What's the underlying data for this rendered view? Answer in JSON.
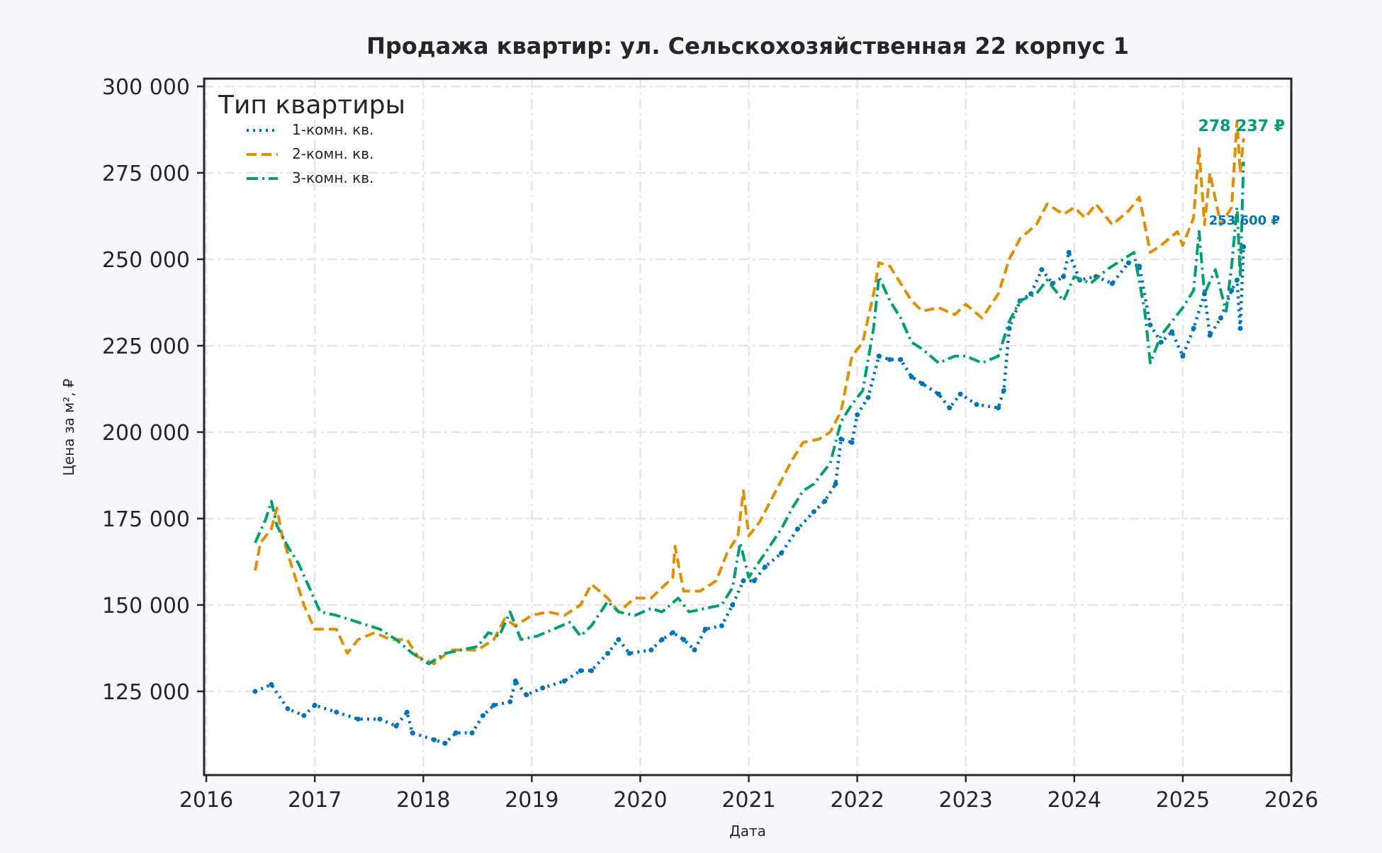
{
  "chart_data": {
    "type": "line",
    "title": "Продажа квартир: ул. Сельскохозяйственная 22 корпус 1",
    "xlabel": "Дата",
    "ylabel": "Цена за м², ₽",
    "xlim": [
      2015.98,
      2026.0
    ],
    "ylim": [
      100800,
      302250
    ],
    "x_ticks": [
      2016,
      2017,
      2018,
      2019,
      2020,
      2021,
      2022,
      2023,
      2024,
      2025,
      2026
    ],
    "x_tick_labels": [
      "2016",
      "2017",
      "2018",
      "2019",
      "2020",
      "2021",
      "2022",
      "2023",
      "2024",
      "2025",
      "2026"
    ],
    "y_ticks": [
      125000,
      150000,
      175000,
      200000,
      225000,
      250000,
      275000,
      300000
    ],
    "y_tick_labels": [
      "125 000",
      "150 000",
      "175 000",
      "200 000",
      "225 000",
      "250 000",
      "275 000",
      "300 000"
    ],
    "grid": true,
    "legend": {
      "title": "Тип квартиры",
      "placement": "top-left"
    },
    "series": [
      {
        "name": "1-комн. кв.",
        "color": "#0173b2",
        "style": "dotted",
        "points": [
          [
            2016.45,
            125000
          ],
          [
            2016.6,
            127000
          ],
          [
            2016.75,
            120000
          ],
          [
            2016.9,
            118000
          ],
          [
            2017.0,
            121000
          ],
          [
            2017.2,
            119000
          ],
          [
            2017.4,
            117000
          ],
          [
            2017.6,
            117000
          ],
          [
            2017.75,
            115000
          ],
          [
            2017.85,
            119000
          ],
          [
            2017.9,
            113000
          ],
          [
            2018.1,
            111000
          ],
          [
            2018.2,
            110000
          ],
          [
            2018.3,
            113000
          ],
          [
            2018.45,
            113000
          ],
          [
            2018.55,
            118000
          ],
          [
            2018.65,
            121000
          ],
          [
            2018.8,
            122000
          ],
          [
            2018.85,
            128000
          ],
          [
            2018.95,
            124000
          ],
          [
            2019.1,
            126000
          ],
          [
            2019.3,
            128000
          ],
          [
            2019.45,
            131000
          ],
          [
            2019.55,
            131000
          ],
          [
            2019.7,
            136000
          ],
          [
            2019.8,
            140000
          ],
          [
            2019.9,
            136000
          ],
          [
            2020.1,
            137000
          ],
          [
            2020.2,
            140000
          ],
          [
            2020.3,
            142000
          ],
          [
            2020.4,
            140000
          ],
          [
            2020.5,
            137000
          ],
          [
            2020.6,
            143000
          ],
          [
            2020.75,
            144000
          ],
          [
            2020.85,
            150000
          ],
          [
            2020.95,
            157000
          ],
          [
            2021.05,
            157000
          ],
          [
            2021.15,
            161000
          ],
          [
            2021.3,
            165000
          ],
          [
            2021.45,
            172000
          ],
          [
            2021.6,
            177000
          ],
          [
            2021.7,
            180000
          ],
          [
            2021.8,
            185000
          ],
          [
            2021.85,
            198000
          ],
          [
            2021.95,
            197000
          ],
          [
            2022.0,
            205000
          ],
          [
            2022.1,
            210000
          ],
          [
            2022.2,
            222000
          ],
          [
            2022.3,
            221000
          ],
          [
            2022.4,
            221000
          ],
          [
            2022.5,
            216000
          ],
          [
            2022.6,
            214000
          ],
          [
            2022.75,
            211000
          ],
          [
            2022.85,
            207000
          ],
          [
            2022.95,
            211000
          ],
          [
            2023.1,
            208000
          ],
          [
            2023.3,
            207000
          ],
          [
            2023.35,
            212000
          ],
          [
            2023.4,
            230000
          ],
          [
            2023.5,
            238000
          ],
          [
            2023.6,
            240000
          ],
          [
            2023.7,
            247000
          ],
          [
            2023.8,
            243000
          ],
          [
            2023.9,
            245000
          ],
          [
            2023.95,
            252000
          ],
          [
            2024.05,
            244000
          ],
          [
            2024.2,
            245000
          ],
          [
            2024.35,
            243000
          ],
          [
            2024.5,
            249000
          ],
          [
            2024.6,
            248000
          ],
          [
            2024.7,
            231000
          ],
          [
            2024.8,
            226000
          ],
          [
            2024.9,
            229000
          ],
          [
            2025.0,
            222000
          ],
          [
            2025.1,
            230000
          ],
          [
            2025.2,
            240000
          ],
          [
            2025.25,
            228000
          ],
          [
            2025.35,
            233000
          ],
          [
            2025.45,
            241000
          ],
          [
            2025.5,
            244000
          ],
          [
            2025.53,
            230000
          ],
          [
            2025.56,
            253600
          ]
        ],
        "last_label": "253 600 ₽"
      },
      {
        "name": "2-комн. кв.",
        "color": "#de8f05",
        "style": "dashed",
        "points": [
          [
            2016.45,
            160000
          ],
          [
            2016.5,
            168000
          ],
          [
            2016.6,
            172000
          ],
          [
            2016.65,
            178000
          ],
          [
            2016.7,
            170000
          ],
          [
            2016.8,
            160000
          ],
          [
            2016.9,
            150000
          ],
          [
            2017.0,
            143000
          ],
          [
            2017.2,
            143000
          ],
          [
            2017.3,
            136000
          ],
          [
            2017.4,
            140000
          ],
          [
            2017.55,
            142000
          ],
          [
            2017.7,
            140000
          ],
          [
            2017.85,
            140000
          ],
          [
            2017.95,
            135000
          ],
          [
            2018.1,
            133000
          ],
          [
            2018.25,
            137000
          ],
          [
            2018.4,
            137000
          ],
          [
            2018.5,
            137000
          ],
          [
            2018.65,
            140000
          ],
          [
            2018.75,
            146000
          ],
          [
            2018.85,
            144000
          ],
          [
            2019.0,
            147000
          ],
          [
            2019.15,
            148000
          ],
          [
            2019.3,
            147000
          ],
          [
            2019.45,
            150000
          ],
          [
            2019.55,
            156000
          ],
          [
            2019.7,
            152000
          ],
          [
            2019.8,
            148000
          ],
          [
            2019.95,
            152000
          ],
          [
            2020.1,
            152000
          ],
          [
            2020.2,
            155000
          ],
          [
            2020.3,
            158000
          ],
          [
            2020.32,
            167000
          ],
          [
            2020.4,
            154000
          ],
          [
            2020.55,
            154000
          ],
          [
            2020.7,
            157000
          ],
          [
            2020.8,
            165000
          ],
          [
            2020.9,
            170000
          ],
          [
            2020.95,
            183000
          ],
          [
            2021.0,
            170000
          ],
          [
            2021.1,
            174000
          ],
          [
            2021.2,
            180000
          ],
          [
            2021.3,
            186000
          ],
          [
            2021.4,
            192000
          ],
          [
            2021.5,
            197000
          ],
          [
            2021.65,
            198000
          ],
          [
            2021.75,
            200000
          ],
          [
            2021.85,
            206000
          ],
          [
            2021.95,
            222000
          ],
          [
            2022.05,
            226000
          ],
          [
            2022.15,
            240000
          ],
          [
            2022.2,
            249000
          ],
          [
            2022.3,
            248000
          ],
          [
            2022.4,
            243000
          ],
          [
            2022.5,
            238000
          ],
          [
            2022.6,
            235000
          ],
          [
            2022.75,
            236000
          ],
          [
            2022.9,
            234000
          ],
          [
            2023.0,
            237000
          ],
          [
            2023.15,
            233000
          ],
          [
            2023.3,
            240000
          ],
          [
            2023.4,
            250000
          ],
          [
            2023.5,
            256000
          ],
          [
            2023.65,
            260000
          ],
          [
            2023.75,
            266000
          ],
          [
            2023.9,
            263000
          ],
          [
            2024.0,
            265000
          ],
          [
            2024.1,
            262000
          ],
          [
            2024.2,
            266000
          ],
          [
            2024.35,
            260000
          ],
          [
            2024.5,
            264000
          ],
          [
            2024.6,
            268000
          ],
          [
            2024.7,
            252000
          ],
          [
            2024.8,
            254000
          ],
          [
            2024.95,
            258000
          ],
          [
            2025.0,
            254000
          ],
          [
            2025.1,
            262000
          ],
          [
            2025.15,
            282000
          ],
          [
            2025.2,
            260000
          ],
          [
            2025.25,
            275000
          ],
          [
            2025.35,
            260000
          ],
          [
            2025.45,
            265000
          ],
          [
            2025.5,
            290000
          ],
          [
            2025.53,
            275000
          ],
          [
            2025.56,
            285000
          ]
        ]
      },
      {
        "name": "3-комн. кв.",
        "color": "#029e73",
        "style": "dashdot",
        "points": [
          [
            2016.45,
            168000
          ],
          [
            2016.55,
            175000
          ],
          [
            2016.6,
            180000
          ],
          [
            2016.65,
            173000
          ],
          [
            2016.75,
            167000
          ],
          [
            2016.85,
            162000
          ],
          [
            2016.95,
            155000
          ],
          [
            2017.05,
            148000
          ],
          [
            2017.2,
            147000
          ],
          [
            2017.4,
            145000
          ],
          [
            2017.6,
            143000
          ],
          [
            2017.75,
            140000
          ],
          [
            2017.9,
            136000
          ],
          [
            2018.05,
            133000
          ],
          [
            2018.2,
            136000
          ],
          [
            2018.35,
            137000
          ],
          [
            2018.5,
            138000
          ],
          [
            2018.6,
            142000
          ],
          [
            2018.7,
            141000
          ],
          [
            2018.8,
            148000
          ],
          [
            2018.9,
            140000
          ],
          [
            2019.05,
            141000
          ],
          [
            2019.2,
            143000
          ],
          [
            2019.35,
            145000
          ],
          [
            2019.45,
            141000
          ],
          [
            2019.55,
            144000
          ],
          [
            2019.7,
            151000
          ],
          [
            2019.8,
            148000
          ],
          [
            2019.95,
            147000
          ],
          [
            2020.1,
            149000
          ],
          [
            2020.2,
            148000
          ],
          [
            2020.35,
            152000
          ],
          [
            2020.45,
            148000
          ],
          [
            2020.6,
            149000
          ],
          [
            2020.75,
            150000
          ],
          [
            2020.85,
            155000
          ],
          [
            2020.92,
            168000
          ],
          [
            2021.0,
            158000
          ],
          [
            2021.15,
            165000
          ],
          [
            2021.3,
            172000
          ],
          [
            2021.4,
            178000
          ],
          [
            2021.5,
            183000
          ],
          [
            2021.6,
            185000
          ],
          [
            2021.75,
            191000
          ],
          [
            2021.85,
            203000
          ],
          [
            2021.95,
            208000
          ],
          [
            2022.05,
            212000
          ],
          [
            2022.15,
            230000
          ],
          [
            2022.2,
            245000
          ],
          [
            2022.3,
            238000
          ],
          [
            2022.4,
            233000
          ],
          [
            2022.5,
            226000
          ],
          [
            2022.6,
            224000
          ],
          [
            2022.75,
            220000
          ],
          [
            2022.9,
            222000
          ],
          [
            2023.0,
            222000
          ],
          [
            2023.15,
            220000
          ],
          [
            2023.3,
            222000
          ],
          [
            2023.4,
            232000
          ],
          [
            2023.5,
            238000
          ],
          [
            2023.65,
            240000
          ],
          [
            2023.75,
            244000
          ],
          [
            2023.9,
            238000
          ],
          [
            2024.0,
            245000
          ],
          [
            2024.15,
            243000
          ],
          [
            2024.3,
            247000
          ],
          [
            2024.45,
            250000
          ],
          [
            2024.55,
            252000
          ],
          [
            2024.65,
            235000
          ],
          [
            2024.7,
            220000
          ],
          [
            2024.8,
            228000
          ],
          [
            2024.9,
            232000
          ],
          [
            2025.0,
            236000
          ],
          [
            2025.1,
            241000
          ],
          [
            2025.15,
            258000
          ],
          [
            2025.2,
            240000
          ],
          [
            2025.3,
            247000
          ],
          [
            2025.4,
            235000
          ],
          [
            2025.45,
            248000
          ],
          [
            2025.5,
            265000
          ],
          [
            2025.53,
            245000
          ],
          [
            2025.56,
            278237
          ]
        ],
        "last_label": "278 237 ₽"
      }
    ]
  }
}
